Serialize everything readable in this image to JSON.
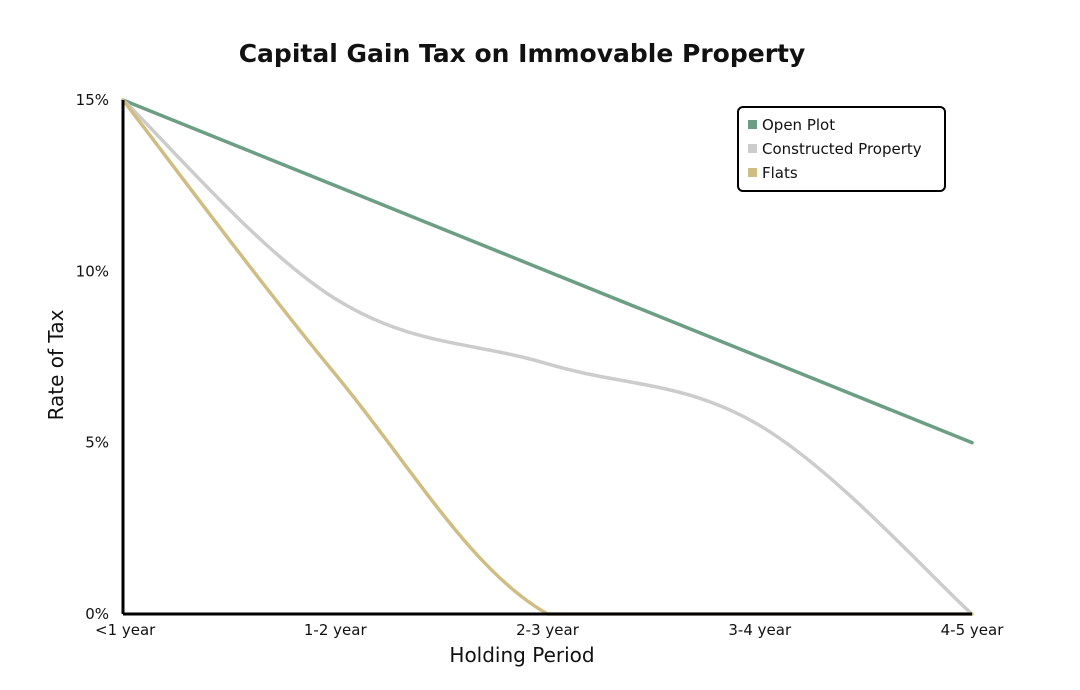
{
  "chart_data": {
    "type": "line",
    "title": "Capital Gain Tax on Immovable Property",
    "xlabel": "Holding Period",
    "ylabel": "Rate of Tax",
    "categories": [
      "<1 year",
      "1-2 year",
      "2-3 year",
      "3-4 year",
      "4-5 year"
    ],
    "y_ticks": [
      {
        "value": 0,
        "label": "0%"
      },
      {
        "value": 5,
        "label": "5%"
      },
      {
        "value": 10,
        "label": "10%"
      },
      {
        "value": 15,
        "label": "15%"
      }
    ],
    "ylim": [
      0,
      15
    ],
    "legend_position": "top-right",
    "grid": false,
    "series": [
      {
        "name": "Open Plot",
        "color": "#6c9e84",
        "values": [
          15,
          12.5,
          10,
          7.5,
          5
        ]
      },
      {
        "name": "Constructed Property",
        "color": "#cccccc",
        "values": [
          15,
          9.2,
          7.3,
          5.5,
          0
        ]
      },
      {
        "name": "Flats",
        "color": "#cfbd84",
        "values": [
          15,
          7,
          0,
          0,
          0
        ]
      }
    ]
  }
}
